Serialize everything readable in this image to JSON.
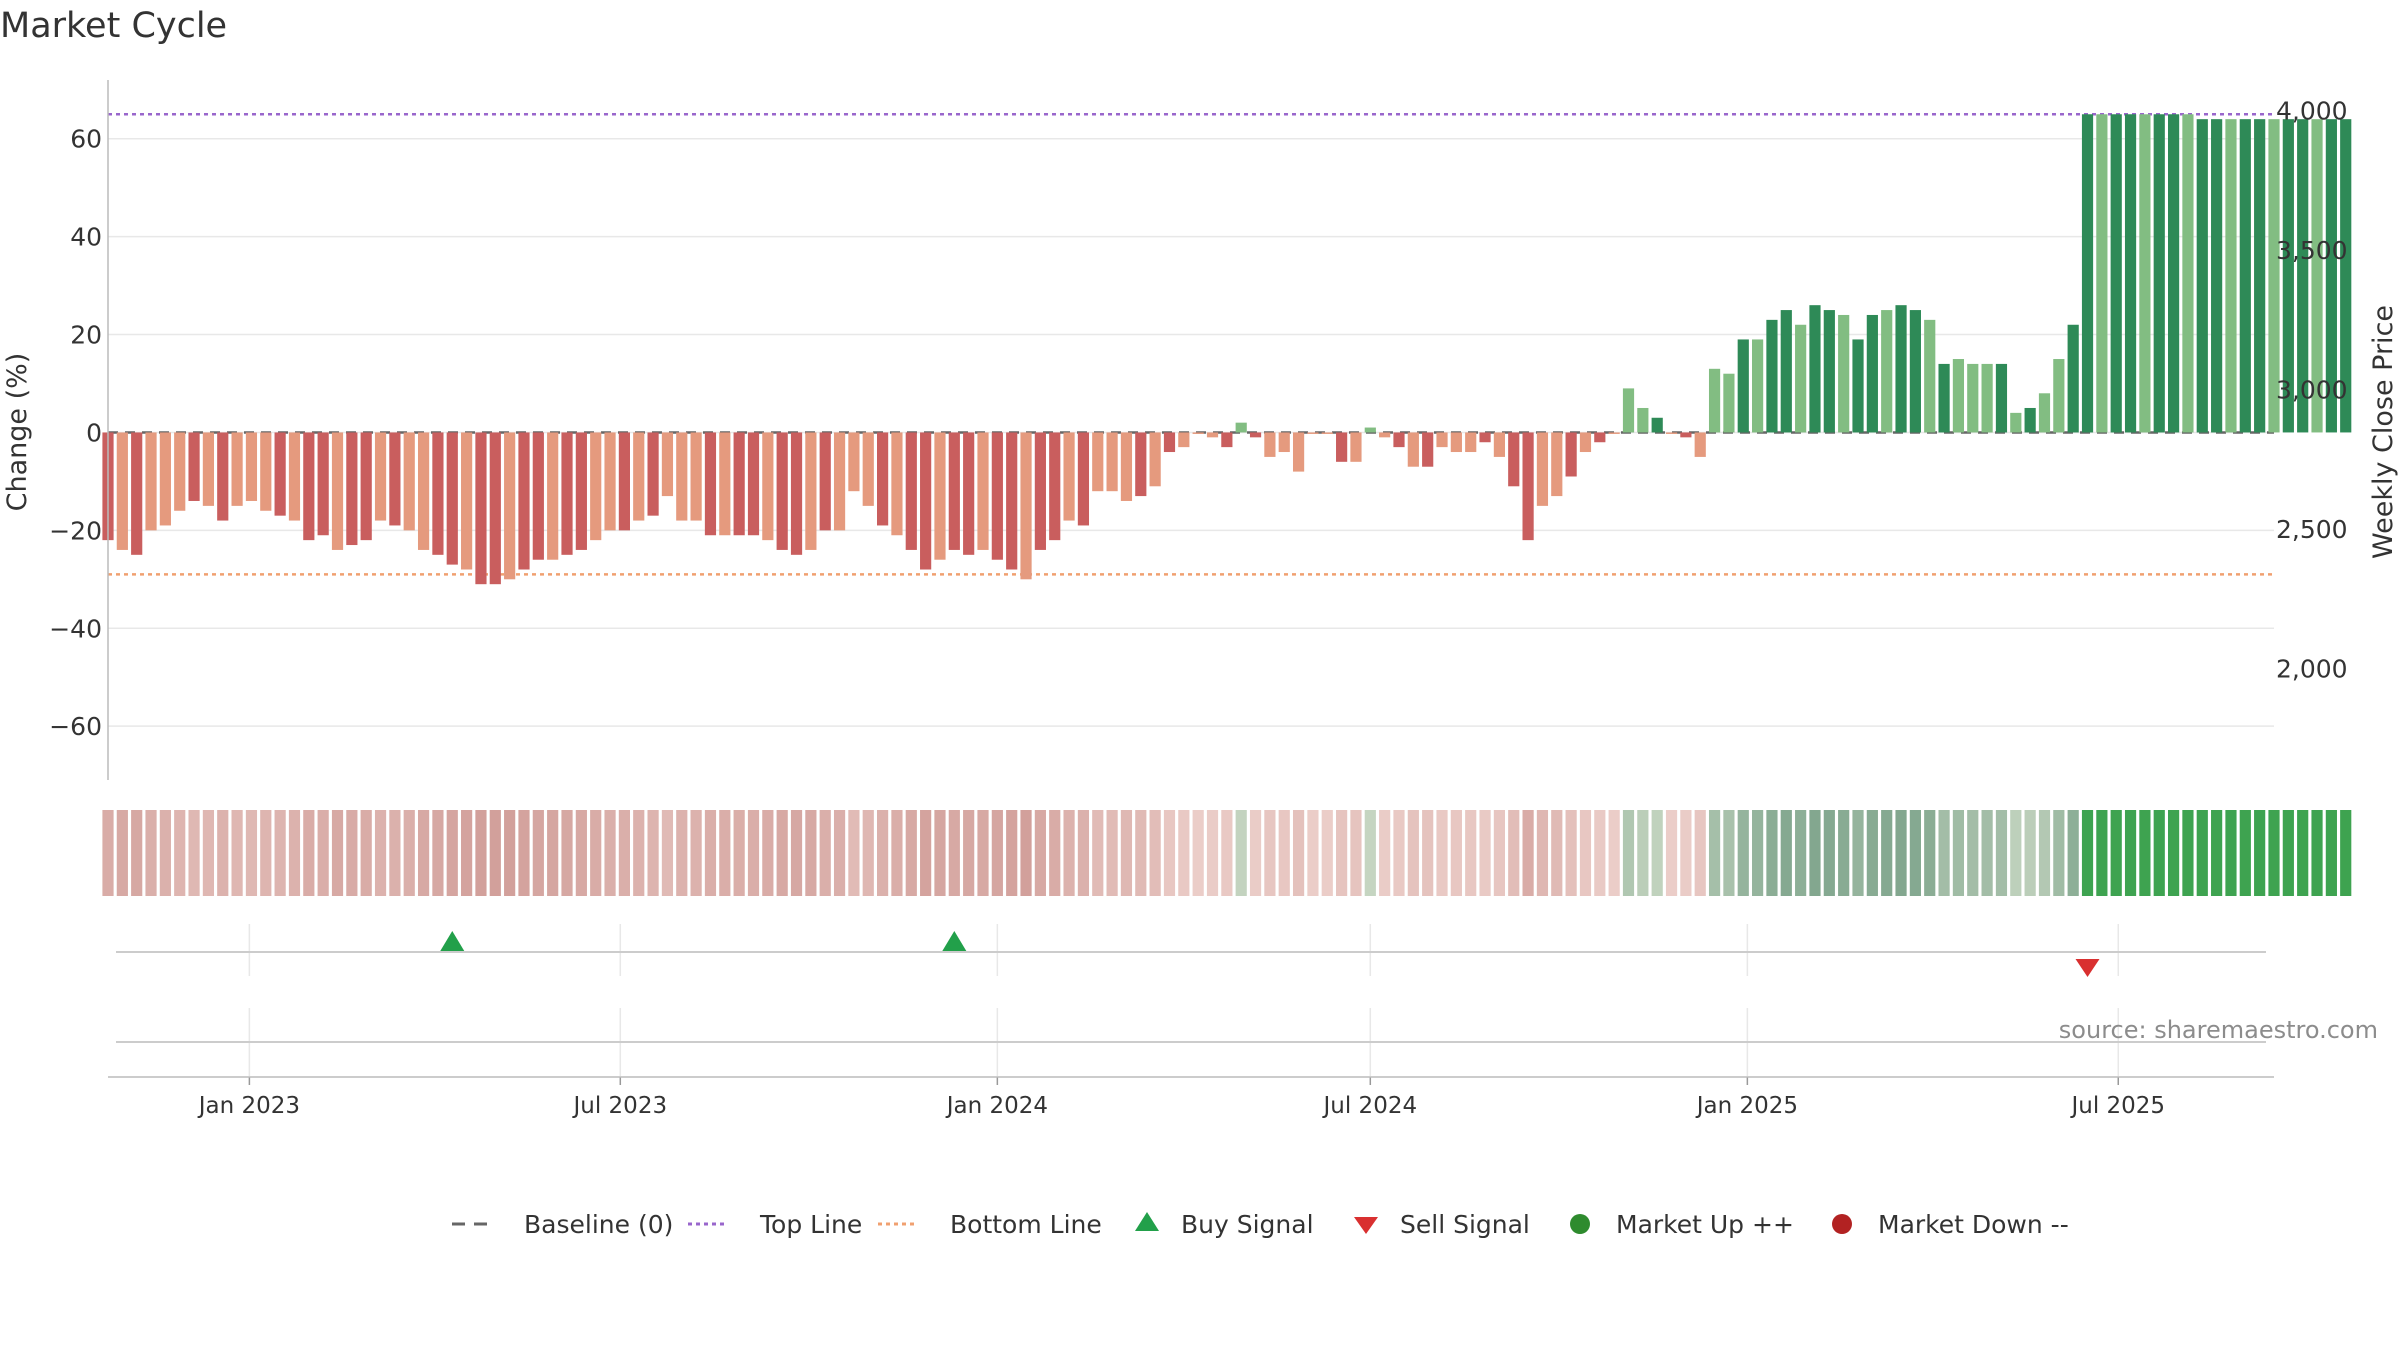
{
  "chart_data": {
    "type": "bar",
    "title": "Market Cycle",
    "ylabel": "Change (%)",
    "y2label": "Weekly Close Price",
    "ylim": [
      -71,
      72
    ],
    "yticks": [
      60,
      40,
      20,
      0,
      -20,
      -40,
      -60
    ],
    "y2lim": [
      1600,
      4110
    ],
    "y2ticks": [
      4000,
      3500,
      3000,
      2500,
      2000
    ],
    "y2tick_labels": [
      "4,000",
      "3,500",
      "3,000",
      "2,500",
      "2,000"
    ],
    "x_start": "2022-10-24",
    "x_end": "2025-09-15",
    "xticks": [
      {
        "date": "2023-01-01",
        "label": "Jan 2023"
      },
      {
        "date": "2023-07-01",
        "label": "Jul 2023"
      },
      {
        "date": "2024-01-01",
        "label": "Jan 2024"
      },
      {
        "date": "2024-07-01",
        "label": "Jul 2024"
      },
      {
        "date": "2025-01-01",
        "label": "Jan 2025"
      },
      {
        "date": "2025-07-01",
        "label": "Jul 2025"
      }
    ],
    "first_week": "2022-10-24",
    "week_values": [
      -22,
      -24,
      -25,
      -20,
      -19,
      -16,
      -14,
      -15,
      -18,
      -15,
      -14,
      -16,
      -17,
      -18,
      -22,
      -21,
      -24,
      -23,
      -22,
      -18,
      -19,
      -20,
      -24,
      -25,
      -27,
      -28,
      -31,
      -31,
      -30,
      -28,
      -26,
      -26,
      -25,
      -24,
      -22,
      -20,
      -20,
      -18,
      -17,
      -13,
      -18,
      -18,
      -21,
      -21,
      -21,
      -21,
      -22,
      -24,
      -25,
      -24,
      -20,
      -20,
      -12,
      -15,
      -19,
      -21,
      -24,
      -28,
      -26,
      -24,
      -25,
      -24,
      -26,
      -28,
      -30,
      -24,
      -22,
      -18,
      -19,
      -12,
      -12,
      -14,
      -13,
      -11,
      -4,
      -3,
      0,
      -1,
      -3,
      2,
      -1,
      -5,
      -4,
      -8,
      0,
      0,
      -6,
      -6,
      1,
      -1,
      -3,
      -7,
      -7,
      -3,
      -4,
      -4,
      -2,
      -5,
      -11,
      -22,
      -15,
      -13,
      -9,
      -4,
      -2,
      0,
      9,
      5,
      3,
      0,
      -1,
      -5,
      13,
      12,
      19,
      19,
      23,
      25,
      22,
      26,
      25,
      24,
      19,
      24,
      25,
      26,
      25,
      23,
      14,
      15,
      14,
      14,
      14,
      4,
      5,
      8,
      15,
      22,
      65,
      65,
      65,
      65,
      65,
      65,
      65,
      65,
      64,
      64,
      64,
      64,
      64,
      64,
      64,
      64,
      64,
      64,
      64
    ],
    "close_prices": [],
    "reference_lines": [
      {
        "name": "Baseline (0)",
        "value": 0,
        "style": "dashed",
        "color": "#666666"
      },
      {
        "name": "Top Line",
        "value": 65,
        "style": "dotted",
        "color": "#9966cc"
      },
      {
        "name": "Bottom Line",
        "value": -29,
        "style": "dotted",
        "color": "#f0a070"
      }
    ],
    "signals": [
      {
        "type": "Buy Signal",
        "date": "2023-04-10"
      },
      {
        "type": "Buy Signal",
        "date": "2023-12-11"
      },
      {
        "type": "Sell Signal",
        "date": "2025-06-16"
      }
    ],
    "legend": [
      {
        "label": "Baseline (0)",
        "marker": "dash",
        "color": "#666666"
      },
      {
        "label": "Top Line",
        "marker": "dotted-line",
        "color": "#9966cc"
      },
      {
        "label": "Bottom Line",
        "marker": "dotted-line",
        "color": "#f0a070"
      },
      {
        "label": "Buy Signal",
        "marker": "triangle-up",
        "color": "#22a04a"
      },
      {
        "label": "Sell Signal",
        "marker": "triangle-down",
        "color": "#d93030"
      },
      {
        "label": "Market Up ++",
        "marker": "circle",
        "color": "#2e8b2e"
      },
      {
        "label": "Market Down --",
        "marker": "circle",
        "color": "#b22222"
      }
    ],
    "legend_position": "bottom-center",
    "grid": true,
    "source_note": "source: sharemaestro.com"
  },
  "colors": {
    "strong_down": "#c95e5e",
    "down": "#e59a7e",
    "up": "#82bd82",
    "strong_up": "#2e8a57",
    "text": "#333333",
    "grid": "#e8e8e8",
    "axis": "#bbbbbb"
  }
}
